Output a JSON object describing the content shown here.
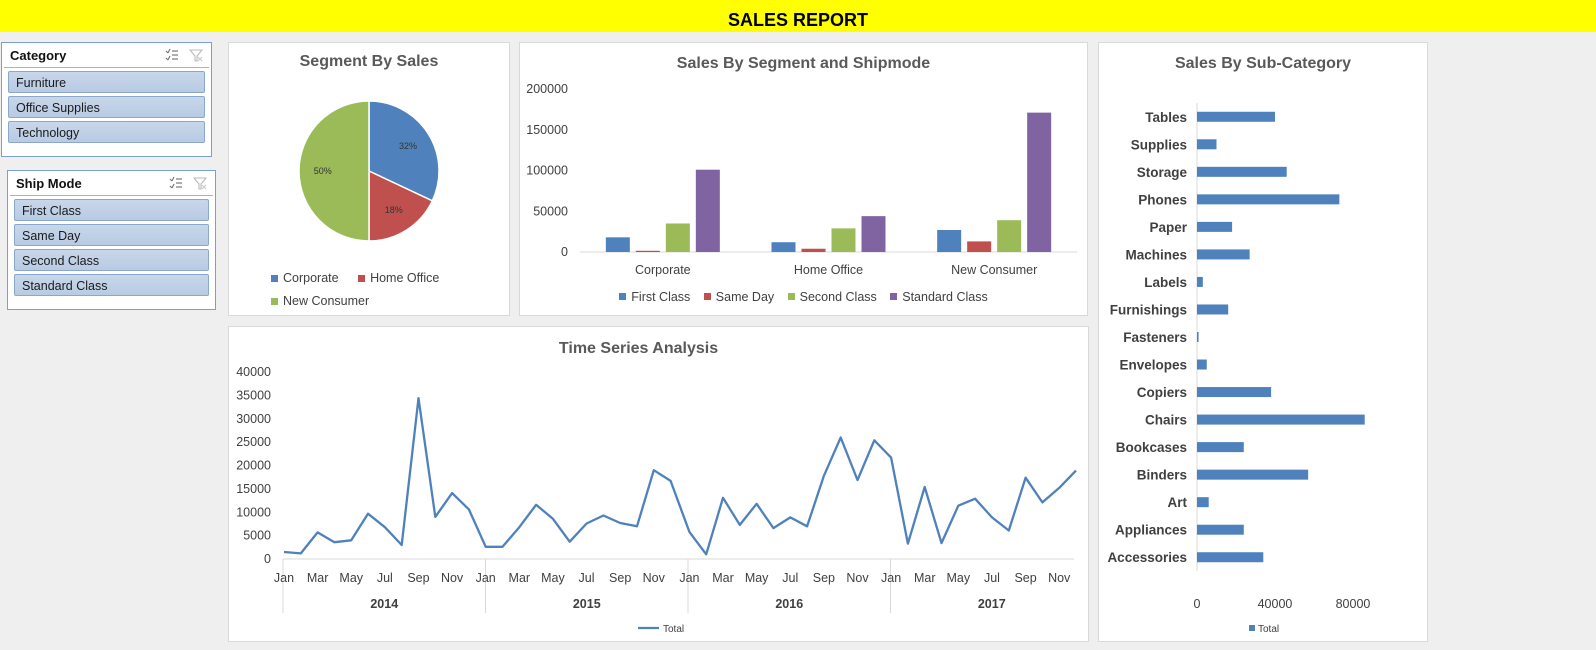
{
  "header": {
    "title": "SALES REPORT"
  },
  "slicers": {
    "category": {
      "title": "Category",
      "items": [
        "Furniture",
        "Office Supplies",
        "Technology"
      ]
    },
    "ship_mode": {
      "title": "Ship Mode",
      "items": [
        "First Class",
        "Same Day",
        "Second Class",
        "Standard Class"
      ]
    },
    "multi_select_icon": "multi-select-icon",
    "clear_filter_icon": "clear-filter-icon"
  },
  "colors": {
    "blue": "#4f81bd",
    "red": "#c0504d",
    "green": "#9bbb59",
    "purple": "#8064a2",
    "title_bar": "#ffff00"
  },
  "chart_data": [
    {
      "type": "pie",
      "title": "Segment By Sales",
      "labels": [
        "Corporate",
        "Home Office",
        "New Consumer"
      ],
      "values": [
        32,
        18,
        50
      ],
      "data_labels": [
        "32%",
        "18%",
        "50%"
      ],
      "legend_position": "bottom"
    },
    {
      "type": "bar",
      "title": "Sales By Segment and Shipmode",
      "categories": [
        "Corporate",
        "Home Office",
        "New Consumer"
      ],
      "series": [
        {
          "name": "First Class",
          "values": [
            18000,
            12000,
            27000
          ]
        },
        {
          "name": "Same Day",
          "values": [
            1500,
            4000,
            13000
          ]
        },
        {
          "name": "Second Class",
          "values": [
            35000,
            29000,
            39000
          ]
        },
        {
          "name": "Standard Class",
          "values": [
            101000,
            44000,
            171000
          ]
        }
      ],
      "ylim": [
        0,
        200000
      ],
      "yticks": [
        "0",
        "50000",
        "100000",
        "150000",
        "200000"
      ],
      "legend_position": "bottom",
      "grid": false
    },
    {
      "type": "bar",
      "orientation": "horizontal",
      "title": "Sales By Sub-Category",
      "categories": [
        "Tables",
        "Supplies",
        "Storage",
        "Phones",
        "Paper",
        "Machines",
        "Labels",
        "Furnishings",
        "Fasteners",
        "Envelopes",
        "Copiers",
        "Chairs",
        "Bookcases",
        "Binders",
        "Art",
        "Appliances",
        "Accessories"
      ],
      "series": [
        {
          "name": "Total",
          "values": [
            40000,
            10000,
            46000,
            73000,
            18000,
            27000,
            3000,
            16000,
            800,
            5000,
            38000,
            86000,
            24000,
            57000,
            6000,
            24000,
            34000
          ]
        }
      ],
      "xlim": [
        0,
        100000
      ],
      "xticks": [
        "0",
        "40000",
        "80000"
      ],
      "legend_position": "bottom"
    },
    {
      "type": "line",
      "title": "Time Series Analysis",
      "years": [
        "2014",
        "2015",
        "2016",
        "2017"
      ],
      "month_ticks": [
        "Jan",
        "Mar",
        "May",
        "Jul",
        "Sep",
        "Nov"
      ],
      "series": [
        {
          "name": "Total",
          "values": [
            1500,
            1200,
            5700,
            3600,
            4000,
            9700,
            6800,
            3000,
            34400,
            9000,
            14100,
            10600,
            2600,
            2600,
            6800,
            11600,
            8600,
            3700,
            7600,
            9300,
            7700,
            7000,
            19000,
            16700,
            5800,
            1000,
            13100,
            7300,
            11800,
            6600,
            8900,
            7000,
            17800,
            26000,
            16900,
            25400,
            21700,
            3300,
            15400,
            3400,
            11400,
            12900,
            8900,
            6100,
            17400,
            12100,
            15200,
            18900
          ]
        }
      ],
      "ylim": [
        0,
        40000
      ],
      "yticks": [
        "0",
        "5000",
        "10000",
        "15000",
        "20000",
        "25000",
        "30000",
        "35000",
        "40000"
      ],
      "legend_position": "bottom"
    }
  ]
}
